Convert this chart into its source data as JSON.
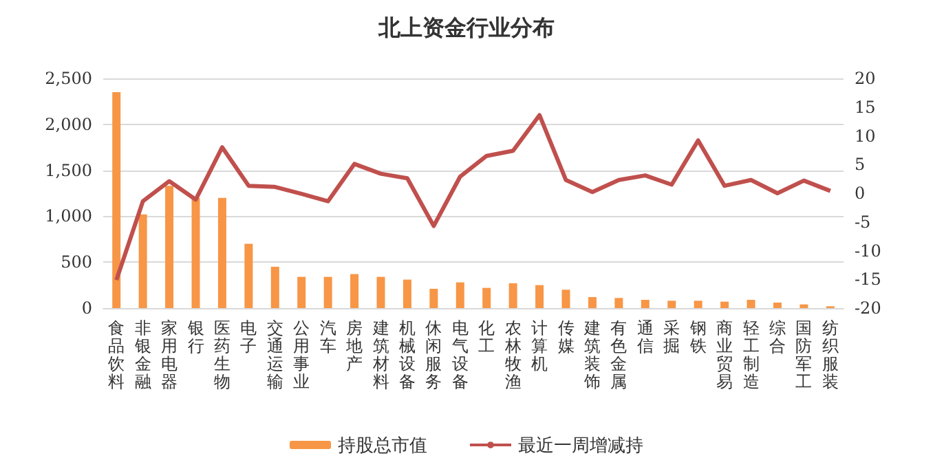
{
  "chart_data": {
    "type": "bar",
    "title": "北上资金行业分布",
    "categories": [
      "食品饮料",
      "非银金融",
      "家用电器",
      "银行",
      "医药生物",
      "电子",
      "交通运输",
      "公用事业",
      "汽车",
      "房地产",
      "建筑材料",
      "机械设备",
      "休闲服务",
      "电气设备",
      "化工",
      "农林牧渔",
      "计算机",
      "传媒",
      "建筑装饰",
      "有色金属",
      "通信",
      "采掘",
      "钢铁",
      "商业贸易",
      "轻工制造",
      "综合",
      "国防军工",
      "纺织服装"
    ],
    "series": [
      {
        "name": "持股总市值",
        "color": "#f79646",
        "values": [
          2350,
          1020,
          1330,
          1200,
          1200,
          700,
          450,
          340,
          340,
          370,
          340,
          310,
          210,
          280,
          220,
          270,
          250,
          200,
          120,
          110,
          90,
          80,
          80,
          70,
          90,
          60,
          40,
          20
        ]
      },
      {
        "name": "最近一周增减持",
        "type": "line",
        "axis": "y2",
        "color": "#c0504d",
        "values": [
          -15.1,
          -1.4,
          2.1,
          -1.1,
          8.0,
          1.3,
          1.1,
          -0.1,
          -1.4,
          5.1,
          3.4,
          2.6,
          -5.7,
          2.9,
          6.5,
          7.4,
          13.6,
          2.3,
          0.2,
          2.3,
          3.1,
          1.5,
          9.2,
          1.3,
          2.3,
          0,
          2.2,
          0.4
        ]
      }
    ],
    "ylim": [
      0,
      2500
    ],
    "yticks": [
      0,
      500,
      {
        "value": 1000,
        "label": "1,000"
      },
      {
        "value": 1500,
        "label": "1,500"
      },
      {
        "value": 2000,
        "label": "2,000"
      },
      {
        "value": 2500,
        "label": "2,500"
      }
    ],
    "y2lim": [
      -20,
      20
    ],
    "y2ticks": [
      -20,
      -15,
      -10,
      -5,
      0,
      5,
      10,
      15,
      20
    ],
    "grid": "y",
    "legend": "bottom",
    "marker": "none",
    "line_style": "solid"
  }
}
